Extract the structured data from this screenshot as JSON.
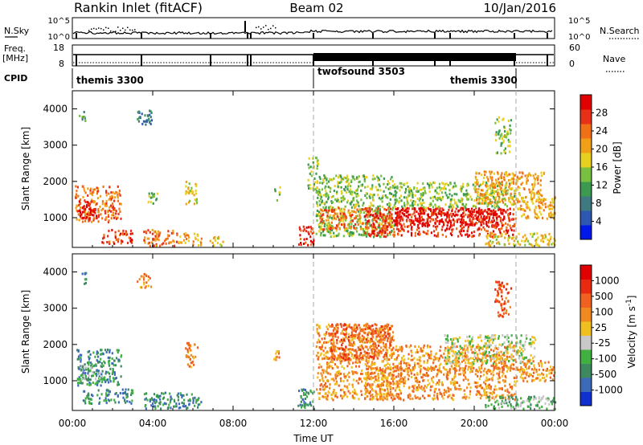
{
  "header": {
    "station": "Rankin Inlet (fitACF)",
    "beam": "Beam 02",
    "date": "10/Jan/2016"
  },
  "aux_panels": {
    "nsky_label": "N.Sky",
    "nsky_ticks": [
      "10^5",
      "10^0"
    ],
    "nsearch_label": "N.Search",
    "nsearch_ticks": [
      "10^5",
      "10^0"
    ],
    "freq_label": "Freq.",
    "freq_unit": "[MHz]",
    "freq_ticks": [
      "18",
      "8"
    ],
    "nave_label": "Nave",
    "nave_ticks": [
      "60",
      "0"
    ],
    "cpid_label": "CPID",
    "cpid_modes": [
      {
        "name": "themis 3300",
        "start": 0,
        "end": 12
      },
      {
        "name": "twofsound 3503",
        "start": 12,
        "end": 22
      },
      {
        "name": "themis 3300",
        "start": 22,
        "end": 24
      }
    ]
  },
  "chart_data": [
    {
      "type": "heatmap",
      "title": "",
      "ylabel": "Slant Range [km]",
      "xlabel": "Time UT",
      "ylim": [
        180,
        4500
      ],
      "xlim": [
        0,
        24
      ],
      "x_ticks": [
        "00:00",
        "04:00",
        "08:00",
        "12:00",
        "16:00",
        "20:00",
        "00:00"
      ],
      "y_ticks": [
        1000,
        2000,
        3000,
        4000
      ],
      "colorbar": {
        "label": "Power [dB]",
        "ticks": [
          "4",
          "8",
          "12",
          "16",
          "20",
          "24",
          "28"
        ],
        "colors": [
          "#0018e8",
          "#2e58b0",
          "#3e7a80",
          "#3c9a50",
          "#78c040",
          "#e8d020",
          "#f0a018",
          "#f07018",
          "#e83018",
          "#e00000"
        ]
      },
      "echo_regions": [
        {
          "t": [
            0.1,
            2.4
          ],
          "r": [
            900,
            1900
          ],
          "level": 7
        },
        {
          "t": [
            0.3,
            1.2
          ],
          "r": [
            1000,
            1500
          ],
          "level": 9
        },
        {
          "t": [
            1.4,
            3.0
          ],
          "r": [
            300,
            700
          ],
          "level": 8
        },
        {
          "t": [
            3.5,
            5.2
          ],
          "r": [
            250,
            700
          ],
          "level": 7
        },
        {
          "t": [
            5.2,
            6.4
          ],
          "r": [
            250,
            600
          ],
          "level": 6
        },
        {
          "t": [
            6.8,
            7.5
          ],
          "r": [
            250,
            500
          ],
          "level": 5
        },
        {
          "t": [
            5.6,
            6.2
          ],
          "r": [
            1400,
            2100
          ],
          "level": 5
        },
        {
          "t": [
            3.7,
            4.2
          ],
          "r": [
            1400,
            1800
          ],
          "level": 4
        },
        {
          "t": [
            3.2,
            4.0
          ],
          "r": [
            3600,
            4000
          ],
          "level": 2
        },
        {
          "t": [
            0.3,
            0.7
          ],
          "r": [
            3700,
            4000
          ],
          "level": 3
        },
        {
          "t": [
            10.0,
            10.3
          ],
          "r": [
            1500,
            1900
          ],
          "level": 4
        },
        {
          "t": [
            11.2,
            12.0
          ],
          "r": [
            250,
            800
          ],
          "level": 8
        },
        {
          "t": [
            11.7,
            12.2
          ],
          "r": [
            1800,
            2800
          ],
          "level": 4
        },
        {
          "t": [
            12.1,
            16.0
          ],
          "r": [
            500,
            2200
          ],
          "level": 4
        },
        {
          "t": [
            12.3,
            15.8
          ],
          "r": [
            700,
            1300
          ],
          "level": 7
        },
        {
          "t": [
            14.5,
            22.0
          ],
          "r": [
            500,
            1300
          ],
          "level": 8
        },
        {
          "t": [
            16.0,
            21.5
          ],
          "r": [
            800,
            1300
          ],
          "level": 9
        },
        {
          "t": [
            16.0,
            22.0
          ],
          "r": [
            1300,
            2000
          ],
          "level": 4
        },
        {
          "t": [
            20.0,
            23.5
          ],
          "r": [
            1400,
            2300
          ],
          "level": 6
        },
        {
          "t": [
            22.0,
            24.0
          ],
          "r": [
            1000,
            1600
          ],
          "level": 6
        },
        {
          "t": [
            21.0,
            21.8
          ],
          "r": [
            2800,
            3800
          ],
          "level": 4
        },
        {
          "t": [
            20.5,
            24.0
          ],
          "r": [
            250,
            600
          ],
          "level": 5
        }
      ]
    },
    {
      "type": "heatmap",
      "title": "",
      "ylabel": "Slant Range [km]",
      "xlabel": "Time UT",
      "ylim": [
        180,
        4500
      ],
      "xlim": [
        0,
        24
      ],
      "x_ticks": [
        "00:00",
        "04:00",
        "08:00",
        "12:00",
        "16:00",
        "20:00",
        "00:00"
      ],
      "y_ticks": [
        1000,
        2000,
        3000,
        4000
      ],
      "colorbar": {
        "label": "Velocity [m s^-1]",
        "ticks": [
          "1000",
          "500",
          "100",
          "25",
          "-25",
          "-100",
          "-500",
          "-1000"
        ],
        "colors": [
          "#1030d0",
          "#3c6ab8",
          "#3e8a60",
          "#40b040",
          "#c8c8c8",
          "#f0c020",
          "#f08a20",
          "#f06020",
          "#e82a10",
          "#e00000"
        ]
      },
      "echo_regions": [
        {
          "t": [
            0.2,
            2.4
          ],
          "r": [
            900,
            1900
          ],
          "level": 2
        },
        {
          "t": [
            0.3,
            1.5
          ],
          "r": [
            1000,
            1500
          ],
          "level": 3
        },
        {
          "t": [
            0.5,
            3.0
          ],
          "r": [
            400,
            800
          ],
          "level": 2
        },
        {
          "t": [
            3.5,
            6.4
          ],
          "r": [
            250,
            700
          ],
          "level": 2
        },
        {
          "t": [
            5.6,
            6.2
          ],
          "r": [
            1400,
            2100
          ],
          "level": 6
        },
        {
          "t": [
            3.2,
            4.0
          ],
          "r": [
            3600,
            4000
          ],
          "level": 6
        },
        {
          "t": [
            0.4,
            0.7
          ],
          "r": [
            3700,
            4000
          ],
          "level": 2
        },
        {
          "t": [
            10.0,
            10.3
          ],
          "r": [
            1500,
            1900
          ],
          "level": 6
        },
        {
          "t": [
            11.2,
            12.0
          ],
          "r": [
            250,
            800
          ],
          "level": 2
        },
        {
          "t": [
            12.1,
            16.0
          ],
          "r": [
            500,
            2600
          ],
          "level": 6
        },
        {
          "t": [
            12.8,
            15.8
          ],
          "r": [
            1600,
            2600
          ],
          "level": 7
        },
        {
          "t": [
            14.5,
            22.0
          ],
          "r": [
            500,
            1400
          ],
          "level": 6
        },
        {
          "t": [
            16.0,
            22.0
          ],
          "r": [
            1300,
            2000
          ],
          "level": 6
        },
        {
          "t": [
            18.5,
            23.0
          ],
          "r": [
            1500,
            2300
          ],
          "level": 4
        },
        {
          "t": [
            22.0,
            24.0
          ],
          "r": [
            1000,
            1600
          ],
          "level": 6
        },
        {
          "t": [
            21.0,
            21.8
          ],
          "r": [
            2800,
            3800
          ],
          "level": 7
        },
        {
          "t": [
            20.5,
            24.0
          ],
          "r": [
            250,
            600
          ],
          "level": 3
        }
      ]
    }
  ]
}
